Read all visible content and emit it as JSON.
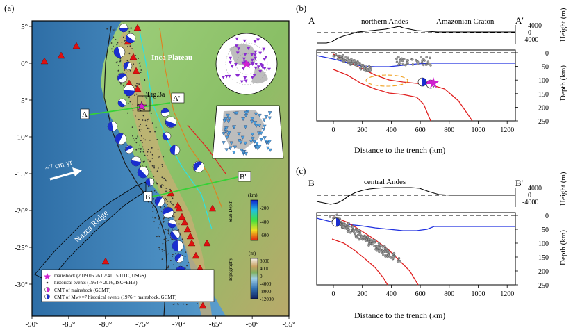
{
  "panel_a": {
    "label": "(a)",
    "lon_ticks": [
      "-90°",
      "-85°",
      "-80°",
      "-75°",
      "-70°",
      "-65°",
      "-60°",
      "-55°"
    ],
    "lat_ticks": [
      "5°",
      "0°",
      "-5°",
      "-10°",
      "-15°",
      "-20°",
      "-25°",
      "-30°"
    ],
    "labels": {
      "inca_plateau": "Inca Plateau",
      "fig3a": "Fig.3a",
      "profile_a": "A",
      "profile_a_prime": "A'",
      "profile_b": "B",
      "profile_b_prime": "B'",
      "velocity": "~7 cm/yr",
      "nazca_ridge": "Nazca Ridge"
    },
    "colorbar_slab": {
      "title": "Slab Depth",
      "unit": "(km)",
      "ticks": [
        "-200",
        "-400",
        "-600"
      ]
    },
    "colorbar_topo": {
      "title": "Topography",
      "unit": "(m)",
      "ticks": [
        "8000",
        "4000",
        "0",
        "-4000",
        "-8000",
        "-12000"
      ]
    },
    "legend": [
      "mainshock (2019.05.26 07:41:15 UTC, USGS)",
      "historical events (1964 ~ 2016, ISC~EHB)",
      "CMT of mainshock (GCMT)",
      "CMT of Mw>=7 historical events (1976 ~ mainshock, GCMT)"
    ]
  },
  "panel_b": {
    "label": "(b)",
    "left_end": "A",
    "right_end": "A'",
    "region_1": "northern Andes",
    "region_2": "Amazonian Craton",
    "height_label": "Height (m)",
    "height_ticks": [
      "4000",
      "0",
      "-4000"
    ],
    "depth_label": "Depth (km)",
    "depth_ticks": [
      "0",
      "50",
      "100",
      "150",
      "200",
      "250"
    ],
    "x_label": "Distance to the trench (km)",
    "x_ticks": [
      "0",
      "200",
      "400",
      "600",
      "800",
      "1000",
      "1200"
    ]
  },
  "panel_c": {
    "label": "(c)",
    "left_end": "B",
    "right_end": "B'",
    "region_1": "central Andes",
    "height_label": "Height (m)",
    "height_ticks": [
      "4000",
      "0",
      "-4000"
    ],
    "depth_label": "Depth (km)",
    "depth_ticks": [
      "0",
      "50",
      "100",
      "150",
      "200",
      "250"
    ],
    "x_label": "Distance to the trench (km)",
    "x_ticks": [
      "0",
      "200",
      "400",
      "600",
      "800",
      "1000",
      "1200"
    ]
  },
  "colors": {
    "ocean": "#3d7fb5",
    "land": "#8fbf6a",
    "slab_line": "#e02020",
    "moho_line": "#2030e0",
    "profile_line": "#35d235",
    "mainshock": "#d020d0"
  }
}
